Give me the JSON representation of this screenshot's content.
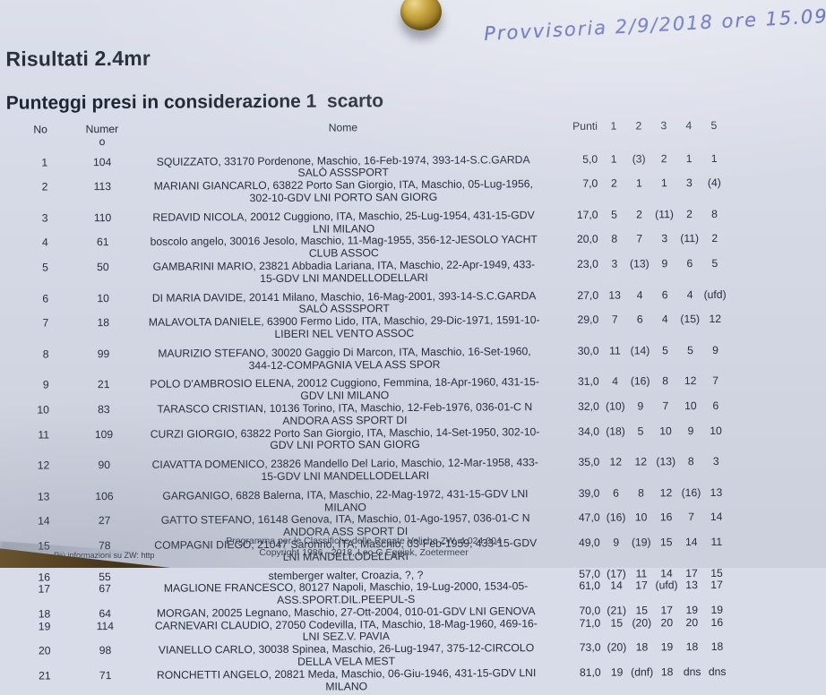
{
  "note": {
    "text": "Provvisoria  2/9/2018  ore 15.09"
  },
  "page": {
    "title": "Risultati 2.4mr",
    "subtitle": "Punteggi presi in considerazione 1  scarto"
  },
  "table": {
    "headers": {
      "pos": "No",
      "sail": [
        "Numer",
        "o"
      ],
      "name": "Nome",
      "points": "Punti",
      "races": [
        "1",
        "2",
        "3",
        "4",
        "5"
      ]
    },
    "rows": [
      {
        "pos": "1",
        "sail": "104",
        "name": "SQUIZZATO, 33170 Pordenone, Maschio, 16-Feb-1974, 393-14-S.C.GARDA SALÒ ASSSPORT",
        "points": "5,0",
        "races": [
          "1",
          "(3)",
          "2",
          "1",
          "1"
        ],
        "spacer_before": false
      },
      {
        "pos": "2",
        "sail": "113",
        "name": "MARIANI GIANCARLO, 63822 Porto San Giorgio, ITA, Maschio, 05-Lug-1956, 302-10-GDV LNI PORTO SAN GIORG",
        "points": "7,0",
        "races": [
          "2",
          "1",
          "1",
          "3",
          "(4)"
        ],
        "spacer_before": false
      },
      {
        "pos": "3",
        "sail": "110",
        "name": "REDAVID NICOLA, 20012 Cuggiono, ITA, Maschio, 25-Lug-1954, 431-15-GDV LNI MILANO",
        "points": "17,0",
        "races": [
          "5",
          "2",
          "(11)",
          "2",
          "8"
        ],
        "spacer_before": true
      },
      {
        "pos": "4",
        "sail": "61",
        "name": "boscolo angelo, 30016 Jesolo, Maschio, 11-Mag-1955, 356-12-JESOLO YACHT CLUB ASSOC",
        "points": "20,0",
        "races": [
          "8",
          "7",
          "3",
          "(11)",
          "2"
        ],
        "spacer_before": false
      },
      {
        "pos": "5",
        "sail": "50",
        "name": "GAMBARINI MARIO, 23821 Abbadia Lariana, ITA, Maschio, 22-Apr-1949, 433-15-GDV LNI MANDELLODELLARI",
        "points": "23,0",
        "races": [
          "3",
          "(13)",
          "9",
          "6",
          "5"
        ],
        "spacer_before": false
      },
      {
        "pos": "6",
        "sail": "10",
        "name": "DI MARIA DAVIDE, 20141 Milano, Maschio, 16-Mag-2001, 393-14-S.C.GARDA SALÒ ASSSPORT",
        "points": "27,0",
        "races": [
          "13",
          "4",
          "6",
          "4",
          "(ufd)"
        ],
        "spacer_before": true
      },
      {
        "pos": "7",
        "sail": "18",
        "name": "MALAVOLTA DANIELE, 63900 Fermo Lido, ITA, Maschio, 29-Dic-1971, 1591-10-LIBERI NEL VENTO ASSOC",
        "points": "29,0",
        "races": [
          "7",
          "6",
          "4",
          "(15)",
          "12"
        ],
        "spacer_before": false
      },
      {
        "pos": "8",
        "sail": "99",
        "name": "MAURIZIO STEFANO, 30020 Gaggio Di Marcon, ITA, Maschio, 16-Set-1960, 344-12-COMPAGNIA VELA ASS SPOR",
        "points": "30,0",
        "races": [
          "11",
          "(14)",
          "5",
          "5",
          "9"
        ],
        "spacer_before": true
      },
      {
        "pos": "9",
        "sail": "21",
        "name": "POLO D'AMBROSIO ELENA, 20012 Cuggiono, Femmina, 18-Apr-1960, 431-15-GDV LNI MILANO",
        "points": "31,0",
        "races": [
          "4",
          "(16)",
          "8",
          "12",
          "7"
        ],
        "spacer_before": true
      },
      {
        "pos": "10",
        "sail": "83",
        "name": "TARASCO CRISTIAN, 10136 Torino, ITA, Maschio, 12-Feb-1976, 036-01-C N ANDORA ASS SPORT DI",
        "points": "32,0",
        "races": [
          "(10)",
          "9",
          "7",
          "10",
          "6"
        ],
        "spacer_before": false
      },
      {
        "pos": "11",
        "sail": "109",
        "name": "CURZI GIORGIO, 63822 Porto San Giorgio, ITA, Maschio, 14-Set-1950, 302-10-GDV LNI PORTO SAN GIORG",
        "points": "34,0",
        "races": [
          "(18)",
          "5",
          "10",
          "9",
          "10"
        ],
        "spacer_before": false
      },
      {
        "pos": "12",
        "sail": "90",
        "name": "CIAVATTA DOMENICO, 23826 Mandello Del Lario, Maschio, 12-Mar-1958, 433-15-GDV LNI MANDELLODELLARI",
        "points": "35,0",
        "races": [
          "12",
          "12",
          "(13)",
          "8",
          "3"
        ],
        "spacer_before": true
      },
      {
        "pos": "13",
        "sail": "106",
        "name": "GARGANIGO, 6828 Balerna, ITA, Maschio, 22-Mag-1972, 431-15-GDV LNI MILANO",
        "points": "39,0",
        "races": [
          "6",
          "8",
          "12",
          "(16)",
          "13"
        ],
        "spacer_before": true
      },
      {
        "pos": "14",
        "sail": "27",
        "name": "GATTO STEFANO, 16148 Genova, ITA, Maschio, 01-Ago-1957, 036-01-C N ANDORA ASS SPORT DI",
        "points": "47,0",
        "races": [
          "(16)",
          "10",
          "16",
          "7",
          "14"
        ],
        "spacer_before": false
      },
      {
        "pos": "15",
        "sail": "78",
        "name": "COMPAGNI DIEGO, 21047 Saronno, ITA, Maschio, 03-Feb-1959, 433-15-GDV LNI MANDELLODELLARI",
        "points": "49,0",
        "races": [
          "9",
          "(19)",
          "15",
          "14",
          "11"
        ],
        "spacer_before": false
      },
      {
        "pos": "16",
        "sail": "55",
        "name": "stemberger walter, Croazia, ?, ?",
        "points": "57,0",
        "races": [
          "(17)",
          "11",
          "14",
          "17",
          "15"
        ],
        "spacer_before": true
      },
      {
        "pos": "17",
        "sail": "67",
        "name": "MAGLIONE FRANCESCO, 80127 Napoli, Maschio, 19-Lug-2000, 1534-05-ASS.SPORT.DIL.PEEPUL-S",
        "points": "61,0",
        "races": [
          "14",
          "17",
          "(ufd)",
          "13",
          "17"
        ],
        "spacer_before": false
      },
      {
        "pos": "18",
        "sail": "64",
        "name": "MORGAN, 20025 Legnano, Maschio, 27-Ott-2004, 010-01-GDV LNI GENOVA",
        "points": "70,0",
        "races": [
          "(21)",
          "15",
          "17",
          "19",
          "19"
        ],
        "spacer_before": false
      },
      {
        "pos": "19",
        "sail": "114",
        "name": "CARNEVARI CLAUDIO, 27050 Codevilla, ITA, Maschio, 18-Mag-1960, 469-16-LNI SEZ.V. PAVIA",
        "points": "71,0",
        "races": [
          "15",
          "(20)",
          "20",
          "20",
          "16"
        ],
        "spacer_before": false
      },
      {
        "pos": "20",
        "sail": "98",
        "name": "VIANELLO CARLO, 30038 Spinea, Maschio, 26-Lug-1947, 375-12-CIRCOLO DELLA VELA MEST",
        "points": "73,0",
        "races": [
          "(20)",
          "18",
          "19",
          "18",
          "18"
        ],
        "spacer_before": false
      },
      {
        "pos": "21",
        "sail": "71",
        "name": "RONCHETTI ANGELO, 20821 Meda, Maschio, 06-Giu-1946, 431-15-GDV LNI MILANO",
        "points": "81,0",
        "races": [
          "19",
          "(dnf)",
          "18",
          "dns",
          "dns"
        ],
        "spacer_before": false
      }
    ]
  },
  "footer": {
    "line1": "Programma per le Classifiche delle Regate Veliche ZW, 4.024.004",
    "line2": "Copyright 1986 - 2018, Leo G Eggink, Zoetermeer",
    "info": "Più informazioni su ZW: http"
  },
  "colors": {
    "paper": "#d8dce8",
    "ink": "#262d3d",
    "pen_blue": "#3d47a4",
    "pin_brass": "#c7a53f",
    "desk_brown": "#5a4627"
  }
}
